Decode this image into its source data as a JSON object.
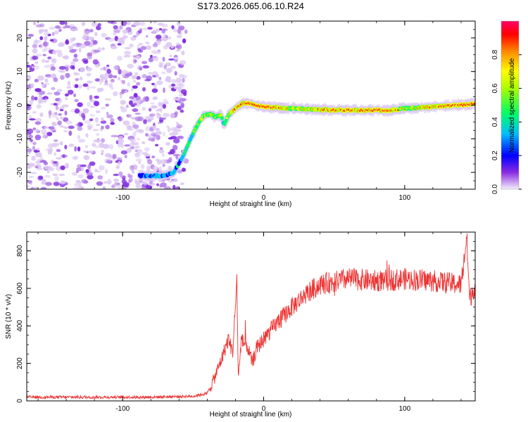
{
  "figure": {
    "title": "S173.2026.065.06.10.R24"
  },
  "chart_data": [
    {
      "type": "heatmap",
      "name": "spectrogram",
      "xlabel": "Height of straight line (km)",
      "ylabel": "Frequency (Hz)",
      "xlim": [
        -168,
        150
      ],
      "ylim": [
        -25,
        25
      ],
      "xticks": [
        -100,
        0,
        100
      ],
      "yticks": [
        -20,
        -10,
        0,
        10,
        20
      ],
      "colorbar": {
        "label": "Normalized spectral amplitude",
        "range": [
          0,
          1
        ],
        "ticks": [
          "0.0",
          "0.2",
          "0.4",
          "0.6",
          "0.8"
        ],
        "colors": [
          "#e6d8f5",
          "#8a2be2",
          "#0000ff",
          "#00bfff",
          "#00ff66",
          "#aaff00",
          "#ffff00",
          "#ff8800",
          "#ff0000",
          "#ff0066"
        ]
      },
      "noise_region": {
        "x": [
          -168,
          -55
        ],
        "y": [
          -25,
          25
        ],
        "amplitude": 0.15
      },
      "ridge": {
        "x": [
          -88,
          -70,
          -64,
          -58,
          -52,
          -46,
          -42,
          -38,
          -34,
          -30,
          -28,
          -25,
          -20,
          -15,
          -10,
          0,
          20,
          50,
          80,
          90,
          100,
          120,
          140,
          150
        ],
        "freq": [
          -21,
          -21,
          -20,
          -16,
          -10,
          -5,
          -3,
          -2.5,
          -3.5,
          -3,
          -6,
          -3,
          -1,
          0.5,
          0.5,
          -0.5,
          -1,
          -1.5,
          -1.5,
          -1.5,
          -1,
          -0.5,
          0,
          0.5
        ],
        "amplitude": [
          0.25,
          0.3,
          0.3,
          0.35,
          0.4,
          0.5,
          0.6,
          0.55,
          0.5,
          0.55,
          0.45,
          0.6,
          0.75,
          0.85,
          0.9,
          0.95,
          0.6,
          0.8,
          0.85,
          0.9,
          0.6,
          0.85,
          0.8,
          0.95
        ]
      }
    },
    {
      "type": "line",
      "name": "snr",
      "xlabel": "Height of straight line (km)",
      "ylabel": "SNR (10 * v/v)",
      "xlim": [
        -168,
        150
      ],
      "ylim": [
        0,
        900
      ],
      "xticks": [
        -100,
        0,
        100
      ],
      "yticks": [
        0,
        200,
        400,
        600,
        800
      ],
      "color": "#ee3333",
      "series": [
        {
          "name": "SNR",
          "x": [
            -168,
            -120,
            -80,
            -50,
            -40,
            -35,
            -30,
            -25,
            -22,
            -19,
            -18,
            -16,
            -12,
            -8,
            -5,
            0,
            10,
            20,
            30,
            40,
            60,
            80,
            100,
            120,
            140,
            144,
            146,
            150
          ],
          "y": [
            20,
            20,
            20,
            25,
            40,
            120,
            220,
            330,
            260,
            640,
            120,
            320,
            300,
            200,
            280,
            330,
            420,
            500,
            570,
            620,
            650,
            640,
            650,
            640,
            620,
            870,
            540,
            620
          ],
          "noise": 45
        }
      ]
    }
  ]
}
